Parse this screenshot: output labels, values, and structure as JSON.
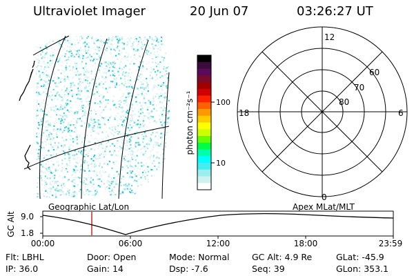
{
  "header": {
    "title": "Ultraviolet Imager",
    "date": "20 Jun 07",
    "time": "03:26:27 UT"
  },
  "colorbar": {
    "unit_label": "photon cm⁻²s⁻¹",
    "tick_labels": [
      "100",
      "10"
    ],
    "colors": [
      "#000000",
      "#3a0a3a",
      "#5a0a5a",
      "#7a0a2a",
      "#a00000",
      "#d00000",
      "#ff2000",
      "#ff6000",
      "#ff9900",
      "#ffcc00",
      "#ffff00",
      "#ccff00",
      "#66ff00",
      "#00ff44",
      "#00ffaa",
      "#00ffff",
      "#44eeee",
      "#99eeee",
      "#ccf2f2",
      "#ffffff"
    ]
  },
  "polar_plot": {
    "mlt_labels": [
      "12",
      "18",
      "6",
      "0"
    ],
    "lat_labels": [
      "60",
      "70",
      "80"
    ]
  },
  "map_labels": {
    "left": "Geographic Lat/Lon",
    "right": "Apex MLat/MLT"
  },
  "altitude_plot": {
    "ylabel": "GC Alt",
    "yticks": [
      "9.0",
      "1.8"
    ],
    "xticks": [
      "00:00",
      "06:00",
      "12:00",
      "18:00",
      "23:59"
    ]
  },
  "info": {
    "row1": [
      {
        "label": "Flt:",
        "value": "LBHL"
      },
      {
        "label": "Door:",
        "value": "Open"
      },
      {
        "label": "Mode:",
        "value": "Normal"
      },
      {
        "label": "GC Alt:",
        "value": "4.9 Re"
      },
      {
        "label": "GLat:",
        "value": "-45.9"
      }
    ],
    "row2": [
      {
        "label": "IP:",
        "value": "36.0"
      },
      {
        "label": "Gain:",
        "value": "14"
      },
      {
        "label": "Dsp:",
        "value": "-7.6"
      },
      {
        "label": "Seq:",
        "value": "39"
      },
      {
        "label": "GLon:",
        "value": "353.1"
      }
    ]
  }
}
